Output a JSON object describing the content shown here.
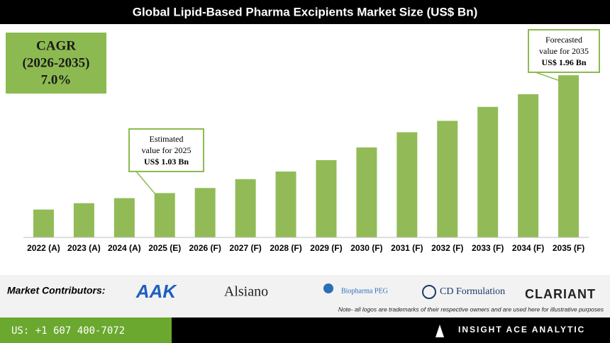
{
  "chart_data": {
    "type": "bar",
    "title": "Global Lipid-Based Pharma Excipients Market Size (US$ Bn)",
    "categories": [
      "2022 (A)",
      "2023 (A)",
      "2024 (A)",
      "2025 (E)",
      "2026 (F)",
      "2027 (F)",
      "2028 (F)",
      "2029 (F)",
      "2030 (F)",
      "2031 (F)",
      "2032 (F)",
      "2033 (F)",
      "2034 (F)",
      "2035 (F)"
    ],
    "values": [
      0.9,
      0.95,
      0.99,
      1.03,
      1.07,
      1.14,
      1.2,
      1.29,
      1.39,
      1.51,
      1.6,
      1.71,
      1.81,
      1.96
    ],
    "color": "#92bb57",
    "ylim": [
      0.68,
      2.0
    ],
    "cagr": [
      "CAGR",
      "(2026-2035)",
      "7.0%"
    ],
    "annotations": [
      {
        "lines": [
          "Estimated",
          "value for 2025",
          "US$ 1.03 Bn"
        ],
        "category": "2025 (E)"
      },
      {
        "lines": [
          "Forecasted",
          "value for 2035",
          "US$ 1.96 Bn"
        ],
        "category": "2035 (F)"
      }
    ]
  },
  "footer": {
    "contributors_label": "Market Contributors:",
    "logos": [
      "AAK",
      "Alsiano",
      "Biopharma PEG",
      "CD Formulation",
      "CLARIANT"
    ],
    "note": "Note- all logos are trademarks of their respective owners and are used here for illustrative purposes",
    "phone": "US: +1 607 400-7072",
    "brand": "INSIGHT ACE ANALYTIC"
  }
}
